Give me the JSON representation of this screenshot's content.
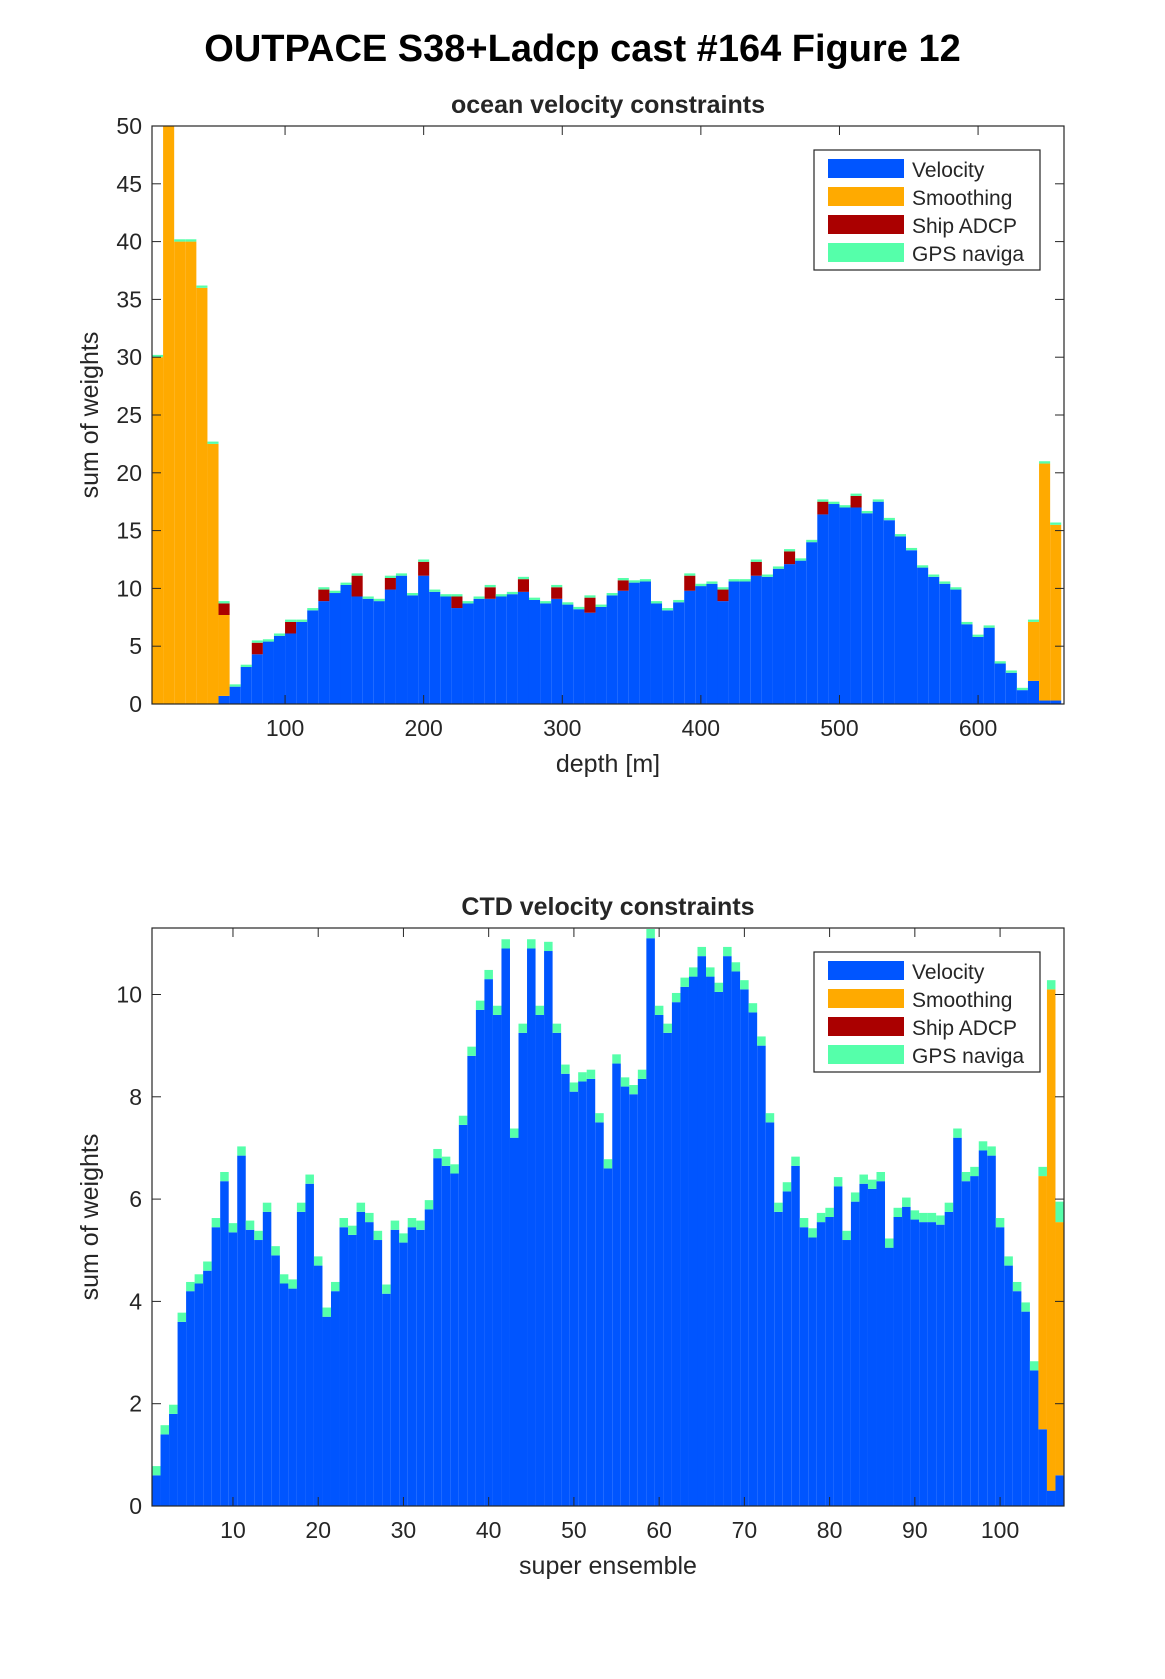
{
  "figure_title": "OUTPACE S38+Ladcp cast #164  Figure 12",
  "colors": {
    "velocity": "#0055FF",
    "smoothing": "#FFAA00",
    "ship_adcp": "#AA0000",
    "gps": "#55FFAA"
  },
  "chart_data": [
    {
      "type": "bar",
      "stacked": true,
      "title": "ocean velocity constraints",
      "xlabel": "depth [m]",
      "ylabel": "sum of weights",
      "xlim": [
        4,
        662
      ],
      "ylim": [
        0,
        50
      ],
      "xticks": [
        100,
        200,
        300,
        400,
        500,
        600
      ],
      "yticks": [
        0,
        5,
        10,
        15,
        20,
        25,
        30,
        35,
        40,
        45,
        50
      ],
      "legend_position": "top-right",
      "legend": [
        "Velocity",
        "Smoothing",
        "Ship ADCP",
        "GPS naviga"
      ],
      "bin_width": 8,
      "x": [
        8,
        16,
        24,
        32,
        40,
        48,
        56,
        64,
        72,
        80,
        88,
        96,
        104,
        112,
        120,
        128,
        136,
        144,
        152,
        160,
        168,
        176,
        184,
        192,
        200,
        208,
        216,
        224,
        232,
        240,
        248,
        256,
        264,
        272,
        280,
        288,
        296,
        304,
        312,
        320,
        328,
        336,
        344,
        352,
        360,
        368,
        376,
        384,
        392,
        400,
        408,
        416,
        424,
        432,
        440,
        448,
        456,
        464,
        472,
        480,
        488,
        496,
        504,
        512,
        520,
        528,
        536,
        544,
        552,
        560,
        568,
        576,
        584,
        592,
        600,
        608,
        616,
        624,
        632,
        640,
        648,
        656
      ],
      "series": [
        {
          "name": "Velocity",
          "values": [
            0,
            0,
            0,
            0,
            0,
            0,
            0.7,
            1.5,
            3.2,
            4.3,
            5.4,
            5.9,
            6.1,
            7.1,
            8.1,
            8.9,
            9.6,
            10.3,
            9.3,
            9.1,
            8.9,
            9.9,
            11.1,
            9.4,
            11.1,
            9.7,
            9.3,
            8.3,
            8.7,
            9.1,
            9.1,
            9.3,
            9.5,
            9.7,
            9.0,
            8.7,
            9.1,
            8.6,
            8.2,
            7.9,
            8.4,
            9.4,
            9.8,
            10.5,
            10.6,
            8.7,
            8.1,
            8.8,
            9.8,
            10.2,
            10.4,
            8.9,
            10.6,
            10.6,
            11.1,
            11.0,
            11.7,
            12.1,
            12.4,
            14.0,
            16.4,
            17.3,
            17.0,
            17.0,
            16.5,
            17.5,
            15.9,
            14.5,
            13.3,
            11.8,
            11.0,
            10.4,
            9.9,
            6.9,
            5.8,
            6.6,
            3.5,
            2.7,
            1.2,
            2.0,
            0.3,
            0.3
          ]
        },
        {
          "name": "Smoothing",
          "values": [
            30,
            50,
            40,
            40,
            36,
            22.5,
            7.0,
            0,
            0,
            0,
            0,
            0,
            0,
            0,
            0,
            0,
            0,
            0,
            0,
            0,
            0,
            0,
            0,
            0,
            0,
            0,
            0,
            0,
            0,
            0,
            0,
            0,
            0,
            0,
            0,
            0,
            0,
            0,
            0,
            0,
            0,
            0,
            0,
            0,
            0,
            0,
            0,
            0,
            0,
            0,
            0,
            0,
            0,
            0,
            0,
            0,
            0,
            0,
            0,
            0,
            0,
            0,
            0,
            0,
            0,
            0,
            0,
            0,
            0,
            0,
            0,
            0,
            0,
            0,
            0,
            0,
            0,
            0,
            0,
            5.1,
            20.5,
            15.2
          ]
        },
        {
          "name": "Ship ADCP",
          "values": [
            0,
            0,
            0,
            0,
            0,
            0,
            1.0,
            0,
            0,
            1.0,
            0,
            0,
            1.0,
            0,
            0,
            1.0,
            0,
            0,
            1.8,
            0,
            0,
            1.0,
            0,
            0,
            1.2,
            0,
            0,
            1.0,
            0,
            0,
            1.0,
            0,
            0,
            1.1,
            0,
            0,
            1.0,
            0,
            0,
            1.3,
            0,
            0,
            0.9,
            0,
            0,
            0,
            0,
            0,
            1.3,
            0,
            0,
            1.0,
            0,
            0,
            1.2,
            0,
            0,
            1.1,
            0,
            0,
            1.1,
            0,
            0,
            1.0,
            0,
            0,
            0,
            0,
            0,
            0,
            0,
            0,
            0,
            0,
            0,
            0,
            0,
            0,
            0,
            0,
            0,
            0
          ]
        },
        {
          "name": "GPS naviga",
          "values": [
            0.2,
            0.2,
            0.2,
            0.2,
            0.2,
            0.2,
            0.2,
            0.2,
            0.2,
            0.2,
            0.2,
            0.2,
            0.2,
            0.2,
            0.2,
            0.2,
            0.2,
            0.2,
            0.2,
            0.2,
            0.2,
            0.2,
            0.2,
            0.2,
            0.2,
            0.2,
            0.2,
            0.2,
            0.2,
            0.2,
            0.2,
            0.2,
            0.2,
            0.2,
            0.2,
            0.2,
            0.2,
            0.2,
            0.2,
            0.2,
            0.2,
            0.2,
            0.2,
            0.2,
            0.2,
            0.2,
            0.2,
            0.2,
            0.2,
            0.2,
            0.2,
            0.2,
            0.2,
            0.2,
            0.2,
            0.2,
            0.2,
            0.2,
            0.2,
            0.2,
            0.2,
            0.2,
            0.2,
            0.2,
            0.2,
            0.2,
            0.2,
            0.2,
            0.2,
            0.2,
            0.2,
            0.2,
            0.2,
            0.2,
            0.2,
            0.2,
            0.2,
            0.2,
            0.2,
            0.2,
            0.2,
            0.2
          ]
        }
      ]
    },
    {
      "type": "bar",
      "stacked": true,
      "title": "CTD velocity constraints",
      "xlabel": "super ensemble",
      "ylabel": "sum of weights",
      "xlim": [
        0.5,
        107.5
      ],
      "ylim": [
        0,
        11.3
      ],
      "xticks": [
        10,
        20,
        30,
        40,
        50,
        60,
        70,
        80,
        90,
        100
      ],
      "yticks": [
        0,
        2,
        4,
        6,
        8,
        10
      ],
      "legend_position": "top-right",
      "legend": [
        "Velocity",
        "Smoothing",
        "Ship ADCP",
        "GPS naviga"
      ],
      "bin_width": 1,
      "x": [
        1,
        2,
        3,
        4,
        5,
        6,
        7,
        8,
        9,
        10,
        11,
        12,
        13,
        14,
        15,
        16,
        17,
        18,
        19,
        20,
        21,
        22,
        23,
        24,
        25,
        26,
        27,
        28,
        29,
        30,
        31,
        32,
        33,
        34,
        35,
        36,
        37,
        38,
        39,
        40,
        41,
        42,
        43,
        44,
        45,
        46,
        47,
        48,
        49,
        50,
        51,
        52,
        53,
        54,
        55,
        56,
        57,
        58,
        59,
        60,
        61,
        62,
        63,
        64,
        65,
        66,
        67,
        68,
        69,
        70,
        71,
        72,
        73,
        74,
        75,
        76,
        77,
        78,
        79,
        80,
        81,
        82,
        83,
        84,
        85,
        86,
        87,
        88,
        89,
        90,
        91,
        92,
        93,
        94,
        95,
        96,
        97,
        98,
        99,
        100,
        101,
        102,
        103,
        104,
        105,
        106,
        107
      ],
      "series": [
        {
          "name": "Velocity",
          "values": [
            0.6,
            1.4,
            1.8,
            3.6,
            4.2,
            4.35,
            4.6,
            5.45,
            6.35,
            5.35,
            6.85,
            5.4,
            5.2,
            5.75,
            4.9,
            4.35,
            4.25,
            5.75,
            6.3,
            4.7,
            3.7,
            4.2,
            5.45,
            5.3,
            5.75,
            5.55,
            5.2,
            4.15,
            5.4,
            5.15,
            5.45,
            5.4,
            5.8,
            6.8,
            6.65,
            6.5,
            7.45,
            8.8,
            9.7,
            10.3,
            9.6,
            10.9,
            7.2,
            9.25,
            10.9,
            9.6,
            10.85,
            9.25,
            8.45,
            8.1,
            8.3,
            8.35,
            7.5,
            6.6,
            8.65,
            8.2,
            8.05,
            8.35,
            11.1,
            9.6,
            9.25,
            9.85,
            10.15,
            10.35,
            10.75,
            10.35,
            10.05,
            10.75,
            10.45,
            10.1,
            9.65,
            9.0,
            7.5,
            5.75,
            6.15,
            6.65,
            5.45,
            5.25,
            5.55,
            5.65,
            6.25,
            5.2,
            5.95,
            6.3,
            6.2,
            6.35,
            5.05,
            5.65,
            5.85,
            5.6,
            5.55,
            5.55,
            5.5,
            5.75,
            7.2,
            6.35,
            6.45,
            6.95,
            6.85,
            5.45,
            4.7,
            4.2,
            3.8,
            2.65,
            1.5,
            0.3,
            0.6
          ]
        },
        {
          "name": "Smoothing",
          "values": [
            0,
            0,
            0,
            0,
            0,
            0,
            0,
            0,
            0,
            0,
            0,
            0,
            0,
            0,
            0,
            0,
            0,
            0,
            0,
            0,
            0,
            0,
            0,
            0,
            0,
            0,
            0,
            0,
            0,
            0,
            0,
            0,
            0,
            0,
            0,
            0,
            0,
            0,
            0,
            0,
            0,
            0,
            0,
            0,
            0,
            0,
            0,
            0,
            0,
            0,
            0,
            0,
            0,
            0,
            0,
            0,
            0,
            0,
            0,
            0,
            0,
            0,
            0,
            0,
            0,
            0,
            0,
            0,
            0,
            0,
            0,
            0,
            0,
            0,
            0,
            0,
            0,
            0,
            0,
            0,
            0,
            0,
            0,
            0,
            0,
            0,
            0,
            0,
            0,
            0,
            0,
            0,
            0,
            0,
            0,
            0,
            0,
            0,
            0,
            0,
            0,
            0,
            0,
            0,
            4.95,
            9.8,
            4.95
          ]
        },
        {
          "name": "Ship ADCP",
          "values": [
            0,
            0,
            0,
            0,
            0,
            0,
            0,
            0,
            0,
            0,
            0,
            0,
            0,
            0,
            0,
            0,
            0,
            0,
            0,
            0,
            0,
            0,
            0,
            0,
            0,
            0,
            0,
            0,
            0,
            0,
            0,
            0,
            0,
            0,
            0,
            0,
            0,
            0,
            0,
            0,
            0,
            0,
            0,
            0,
            0,
            0,
            0,
            0,
            0,
            0,
            0,
            0,
            0,
            0,
            0,
            0,
            0,
            0,
            0,
            0,
            0,
            0,
            0,
            0,
            0,
            0,
            0,
            0,
            0,
            0,
            0,
            0,
            0,
            0,
            0,
            0,
            0,
            0,
            0,
            0,
            0,
            0,
            0,
            0,
            0,
            0,
            0,
            0,
            0,
            0,
            0,
            0,
            0,
            0,
            0,
            0,
            0,
            0,
            0,
            0,
            0,
            0,
            0,
            0,
            0,
            0,
            0
          ]
        },
        {
          "name": "GPS naviga",
          "values": [
            0.18,
            0.18,
            0.18,
            0.18,
            0.18,
            0.18,
            0.18,
            0.18,
            0.18,
            0.18,
            0.18,
            0.18,
            0.18,
            0.18,
            0.18,
            0.18,
            0.18,
            0.18,
            0.18,
            0.18,
            0.18,
            0.18,
            0.18,
            0.18,
            0.18,
            0.18,
            0.18,
            0.18,
            0.18,
            0.18,
            0.18,
            0.18,
            0.18,
            0.18,
            0.18,
            0.18,
            0.18,
            0.18,
            0.18,
            0.18,
            0.18,
            0.18,
            0.18,
            0.18,
            0.18,
            0.18,
            0.18,
            0.18,
            0.18,
            0.18,
            0.18,
            0.18,
            0.18,
            0.18,
            0.18,
            0.18,
            0.18,
            0.18,
            0.18,
            0.18,
            0.18,
            0.18,
            0.18,
            0.18,
            0.18,
            0.18,
            0.18,
            0.18,
            0.18,
            0.18,
            0.18,
            0.18,
            0.18,
            0.18,
            0.18,
            0.18,
            0.18,
            0.18,
            0.18,
            0.18,
            0.18,
            0.18,
            0.18,
            0.18,
            0.18,
            0.18,
            0.18,
            0.18,
            0.18,
            0.18,
            0.18,
            0.18,
            0.18,
            0.18,
            0.18,
            0.18,
            0.18,
            0.18,
            0.18,
            0.18,
            0.18,
            0.18,
            0.18,
            0.18,
            0.18,
            0.18,
            0.4
          ]
        }
      ]
    }
  ]
}
